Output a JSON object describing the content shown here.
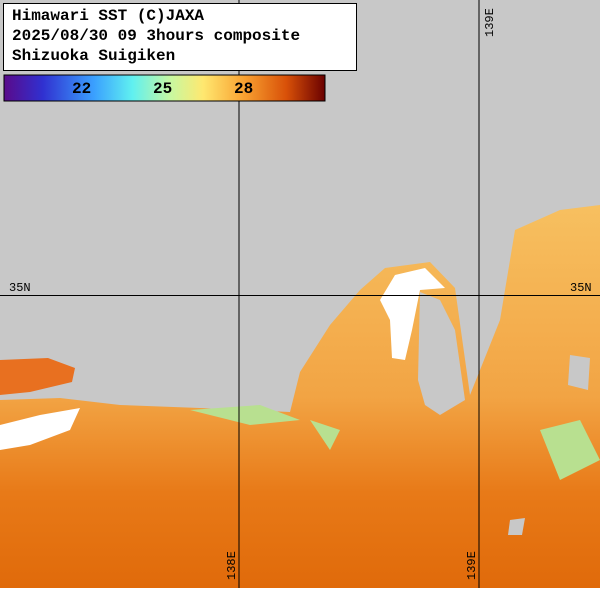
{
  "header": {
    "lines": [
      "Himawari SST (C)JAXA",
      "2025/08/30 09 3hours composite",
      "Shizuoka Suigiken"
    ]
  },
  "colorbar": {
    "labels": [
      22,
      25,
      28
    ]
  },
  "grid_labels": {
    "lat_left": "35N",
    "lat_right": "35N",
    "lon_top": "139E",
    "lon_bottom_left": "138E",
    "lon_bottom_right": "139E"
  }
}
